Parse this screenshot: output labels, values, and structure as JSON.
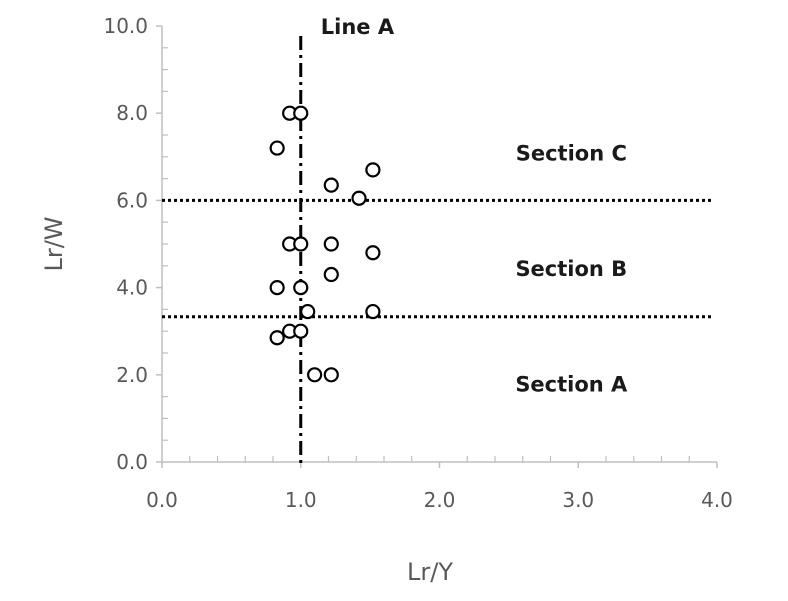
{
  "chart_data": {
    "type": "scatter",
    "title": "",
    "xlabel": "Lr/Y",
    "ylabel": "Lr/W",
    "xlim": [
      0,
      4
    ],
    "ylim": [
      0,
      10
    ],
    "x_ticks": [
      "0.0",
      "1.0",
      "2.0",
      "3.0",
      "4.0"
    ],
    "y_ticks": [
      "0.0",
      "2.0",
      "4.0",
      "6.0",
      "8.0",
      "10.0"
    ],
    "grid": false,
    "points": [
      {
        "x": 0.92,
        "y": 8.0
      },
      {
        "x": 1.0,
        "y": 8.0
      },
      {
        "x": 0.83,
        "y": 7.2
      },
      {
        "x": 1.52,
        "y": 6.7
      },
      {
        "x": 1.22,
        "y": 6.35
      },
      {
        "x": 1.42,
        "y": 6.05
      },
      {
        "x": 0.92,
        "y": 5.0
      },
      {
        "x": 1.0,
        "y": 5.0
      },
      {
        "x": 1.22,
        "y": 5.0
      },
      {
        "x": 1.52,
        "y": 4.8
      },
      {
        "x": 1.22,
        "y": 4.3
      },
      {
        "x": 0.83,
        "y": 4.0
      },
      {
        "x": 1.0,
        "y": 4.0
      },
      {
        "x": 1.05,
        "y": 3.45
      },
      {
        "x": 1.52,
        "y": 3.45
      },
      {
        "x": 0.92,
        "y": 3.0
      },
      {
        "x": 1.0,
        "y": 3.0
      },
      {
        "x": 0.83,
        "y": 2.85
      },
      {
        "x": 1.1,
        "y": 2.0
      },
      {
        "x": 1.22,
        "y": 2.0
      }
    ],
    "reference_lines": [
      {
        "orientation": "vertical",
        "value": 1.0,
        "style": "dash-dot",
        "label": "Line A"
      },
      {
        "orientation": "horizontal",
        "value": 6.0,
        "style": "dotted"
      },
      {
        "orientation": "horizontal",
        "value": 3.33,
        "style": "dotted"
      }
    ],
    "annotations": [
      {
        "text": "Section C",
        "x": 2.95,
        "y": 7.1
      },
      {
        "text": "Section B",
        "x": 2.95,
        "y": 4.45
      },
      {
        "text": "Section A",
        "x": 2.95,
        "y": 1.8
      }
    ],
    "colors": {
      "axis": "#bfbfbf",
      "text": "#595959",
      "marker": "#000000",
      "reference": "#000000"
    }
  }
}
